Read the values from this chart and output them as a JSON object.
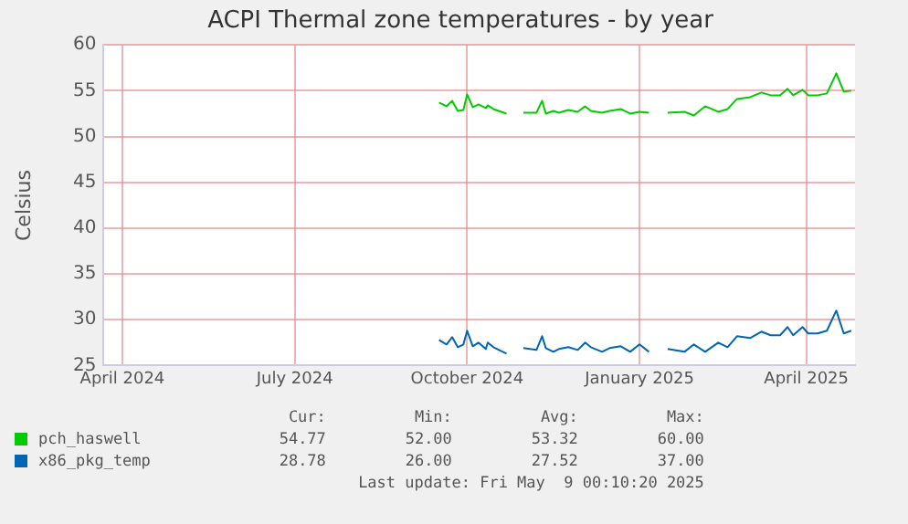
{
  "chart_data": {
    "type": "line",
    "title": "ACPI Thermal zone temperatures - by year",
    "ylabel": "Celsius",
    "x": [
      "2024-10-01",
      "2024-10-05",
      "2024-10-08",
      "2024-10-11",
      "2024-10-14",
      "2024-10-16",
      "2024-10-19",
      "2024-10-22",
      "2024-10-26",
      "2024-10-27",
      "2024-10-30",
      "2024-11-06",
      "2024-11-10",
      "2024-11-15",
      "2024-11-22",
      "2024-11-25",
      "2024-11-27",
      "2024-12-01",
      "2024-12-04",
      "2024-12-09",
      "2024-12-14",
      "2024-12-18",
      "2024-12-21",
      "2024-12-27",
      "2024-12-31",
      "2025-01-06",
      "2025-01-11",
      "2025-01-16",
      "2025-01-21",
      "2025-01-26",
      "2025-01-31",
      "2025-02-09",
      "2025-02-14",
      "2025-02-20",
      "2025-02-27",
      "2025-03-04",
      "2025-03-09",
      "2025-03-16",
      "2025-03-22",
      "2025-03-27",
      "2025-04-01",
      "2025-04-05",
      "2025-04-08",
      "2025-04-13",
      "2025-04-16",
      "2025-04-21",
      "2025-04-26",
      "2025-05-01",
      "2025-05-05",
      "2025-05-09"
    ],
    "series": [
      {
        "name": "pch_haswell",
        "color": "#00cc00",
        "values": [
          53.7,
          53.3,
          53.9,
          52.8,
          52.9,
          54.6,
          53.2,
          53.5,
          53.1,
          53.4,
          53.0,
          52.5,
          null,
          52.6,
          52.6,
          53.9,
          52.5,
          52.8,
          52.6,
          52.9,
          52.7,
          53.3,
          52.8,
          52.6,
          52.8,
          53.0,
          52.5,
          52.7,
          52.6,
          null,
          52.6,
          52.7,
          52.3,
          53.3,
          52.7,
          53.0,
          54.1,
          54.3,
          54.8,
          54.5,
          54.5,
          55.2,
          54.5,
          55.1,
          54.5,
          54.5,
          54.7,
          56.9,
          54.9,
          55.0
        ]
      },
      {
        "name": "x86_pkg_temp",
        "color": "#0066b3",
        "values": [
          27.8,
          27.3,
          28.1,
          27.0,
          27.3,
          28.8,
          27.1,
          27.5,
          26.8,
          27.5,
          27.0,
          26.3,
          null,
          26.9,
          26.7,
          28.2,
          26.9,
          26.5,
          26.8,
          27.0,
          26.7,
          27.5,
          27.0,
          26.5,
          26.9,
          27.1,
          26.5,
          27.3,
          26.5,
          null,
          26.8,
          26.5,
          27.3,
          26.5,
          27.5,
          27.0,
          28.2,
          28.0,
          28.7,
          28.3,
          28.3,
          29.2,
          28.3,
          29.2,
          28.5,
          28.5,
          28.8,
          31.0,
          28.5,
          28.8
        ]
      }
    ],
    "xlim": [
      "2024-04-05",
      "2025-05-11"
    ],
    "xticks": [
      {
        "value": "2024-04-15",
        "label": "April 2024"
      },
      {
        "value": "2024-07-16",
        "label": "July 2024"
      },
      {
        "value": "2024-10-16",
        "label": "October 2024"
      },
      {
        "value": "2025-01-16",
        "label": "January 2025"
      },
      {
        "value": "2025-04-15",
        "label": "April 2025"
      }
    ],
    "ylim": [
      25,
      60
    ],
    "yticks": [
      25,
      30,
      35,
      40,
      45,
      50,
      55,
      60
    ],
    "grid": true,
    "legend": "bottom left",
    "marker": "none",
    "line_style": "solid",
    "annotations": [
      "Cur:",
      "Min:",
      "Avg:",
      "Max:",
      "54.77",
      "52.00",
      "53.32",
      "60.00",
      "28.78",
      "26.00",
      "27.52",
      "37.00",
      "Last update: Fri May  9 00:10:20 2025"
    ]
  }
}
